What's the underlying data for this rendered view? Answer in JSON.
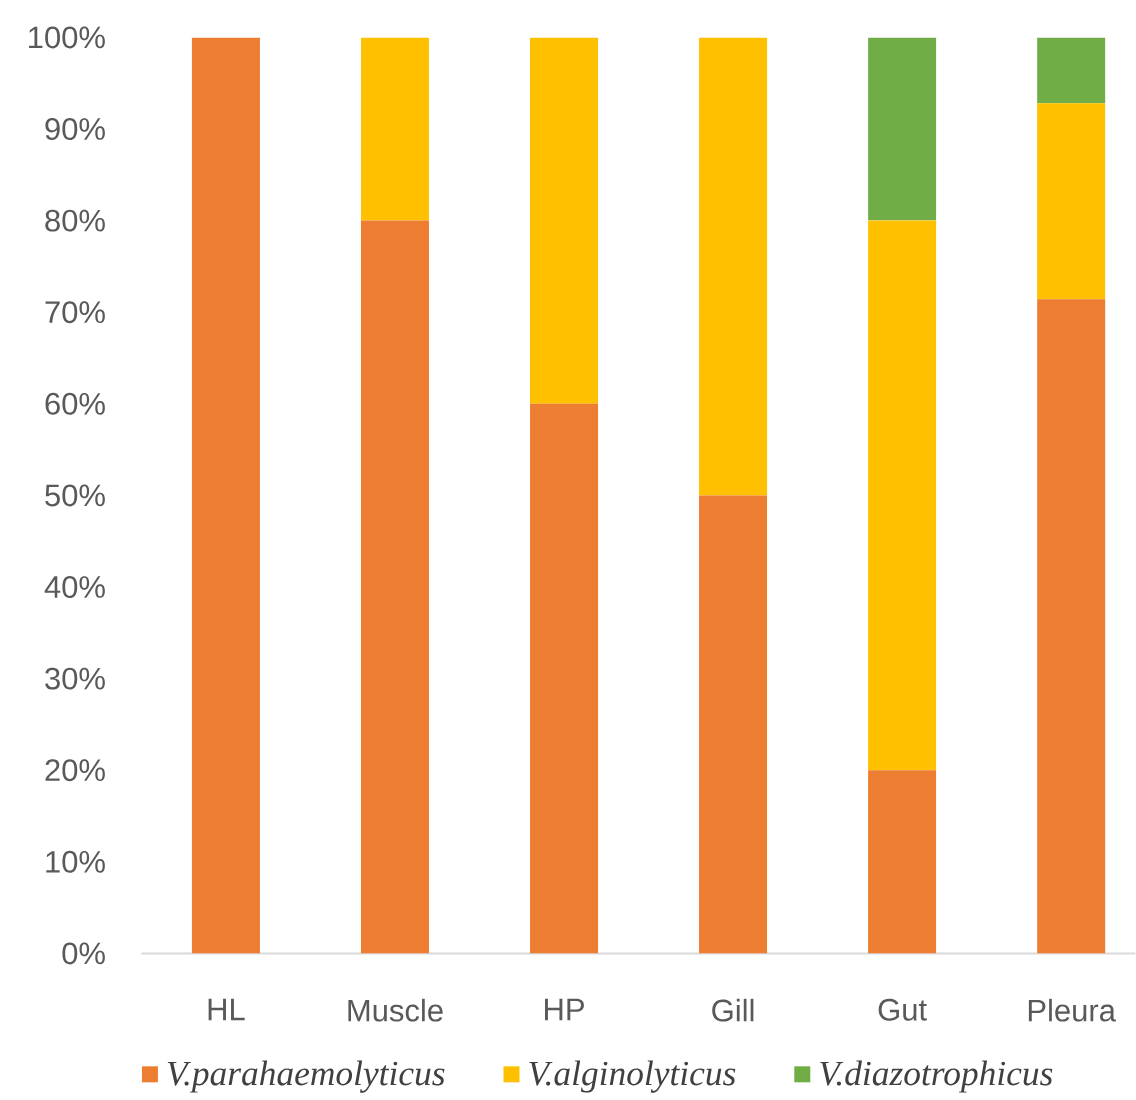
{
  "chart_data": {
    "type": "bar",
    "stacked": true,
    "categories": [
      "HL",
      "Muscle",
      "HP",
      "Gill",
      "Gut",
      "Pleura"
    ],
    "series": [
      {
        "name": "V.parahaemolyticus",
        "color": "#ed7d31",
        "values": [
          100,
          80,
          60,
          50,
          20,
          71.4
        ]
      },
      {
        "name": "V.alginolyticus",
        "color": "#ffc000",
        "values": [
          0,
          20,
          40,
          50,
          60,
          21.4
        ]
      },
      {
        "name": "V.diazotrophicus",
        "color": "#70ad47",
        "values": [
          0,
          0,
          0,
          0,
          20,
          7.2
        ]
      }
    ],
    "ylim": [
      0,
      100
    ],
    "yticks": [
      {
        "value": 0,
        "label": "0%"
      },
      {
        "value": 10,
        "label": "10%"
      },
      {
        "value": 20,
        "label": "20%"
      },
      {
        "value": 30,
        "label": "30%"
      },
      {
        "value": 40,
        "label": "40%"
      },
      {
        "value": 50,
        "label": "50%"
      },
      {
        "value": 60,
        "label": "60%"
      },
      {
        "value": 70,
        "label": "70%"
      },
      {
        "value": 80,
        "label": "80%"
      },
      {
        "value": 90,
        "label": "90%"
      },
      {
        "value": 100,
        "label": "100%"
      }
    ],
    "legend": "bottom"
  }
}
